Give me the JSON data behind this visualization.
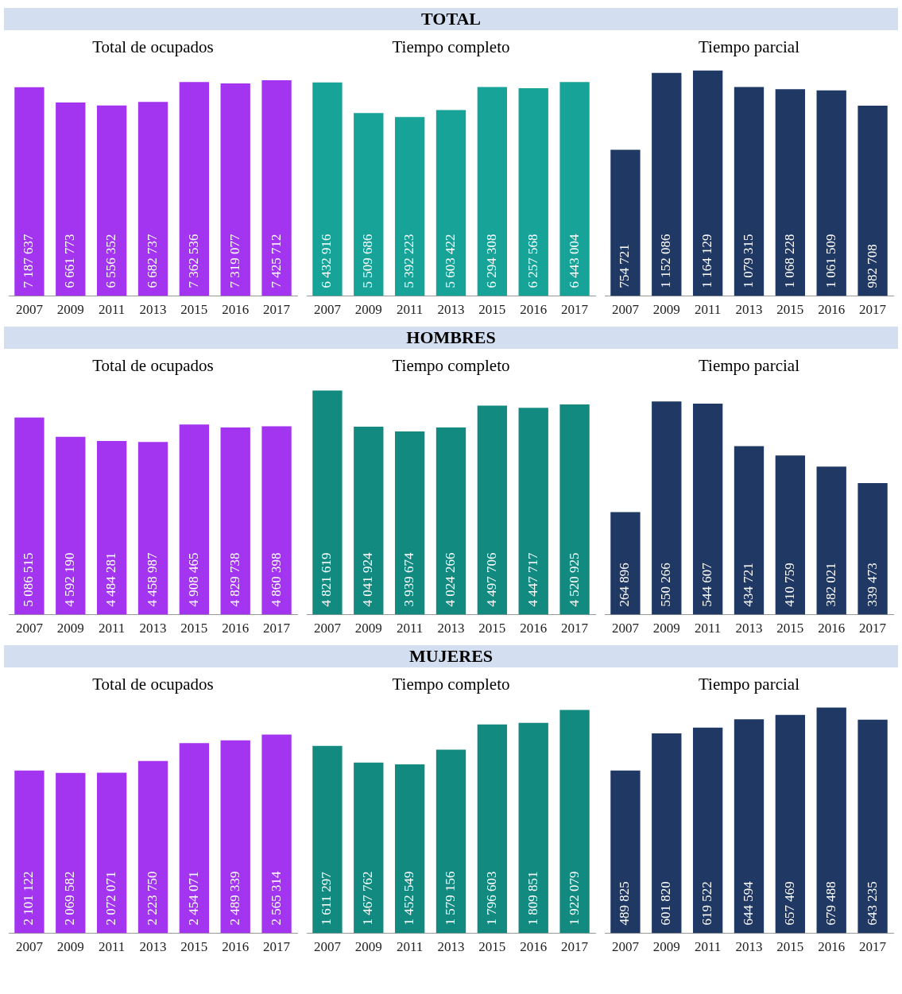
{
  "chart_data": [
    {
      "type": "bar",
      "subtitle": "Total de ocupados",
      "categories": [
        "2007",
        "2009",
        "2011",
        "2013",
        "2015",
        "2016",
        "2017"
      ],
      "values": [
        7187637,
        6661773,
        6556352,
        6682737,
        7362536,
        7319077,
        7425712
      ],
      "color": "#a335f0",
      "data_labels": true,
      "tick_labels": "x"
    },
    {
      "type": "bar",
      "title": "TOTAL",
      "subtitle": "Tiempo completo",
      "categories": [
        "2007",
        "2009",
        "2011",
        "2013",
        "2015",
        "2016",
        "2017"
      ],
      "values": [
        6432916,
        5509686,
        5392223,
        5603422,
        6294308,
        6257568,
        6443004
      ],
      "color": "#17a398",
      "data_labels": true,
      "tick_labels": "x"
    },
    {
      "type": "bar",
      "subtitle": "Tiempo parcial",
      "categories": [
        "2007",
        "2009",
        "2011",
        "2013",
        "2015",
        "2016",
        "2017"
      ],
      "values": [
        754721,
        1152086,
        1164129,
        1079315,
        1068228,
        1061509,
        982708
      ],
      "color": "#1f3864",
      "data_labels": true,
      "tick_labels": "x"
    },
    {
      "type": "bar",
      "subtitle": "Total de ocupados",
      "categories": [
        "2007",
        "2009",
        "2011",
        "2013",
        "2015",
        "2016",
        "2017"
      ],
      "values": [
        5086515,
        4592190,
        4484281,
        4458987,
        4908465,
        4829738,
        4860398
      ],
      "color": "#a335f0",
      "data_labels": true,
      "tick_labels": "x"
    },
    {
      "type": "bar",
      "title": "HOMBRES",
      "subtitle": "Tiempo completo",
      "categories": [
        "2007",
        "2009",
        "2011",
        "2013",
        "2015",
        "2016",
        "2017"
      ],
      "values": [
        4821619,
        4041924,
        3939674,
        4024266,
        4497706,
        4447717,
        4520925
      ],
      "color": "#138a80",
      "data_labels": true,
      "tick_labels": "x"
    },
    {
      "type": "bar",
      "subtitle": "Tiempo parcial",
      "categories": [
        "2007",
        "2009",
        "2011",
        "2013",
        "2015",
        "2016",
        "2017"
      ],
      "values": [
        264896,
        550266,
        544607,
        434721,
        410759,
        382021,
        339473
      ],
      "color": "#1f3864",
      "data_labels": true,
      "tick_labels": "x"
    },
    {
      "type": "bar",
      "subtitle": "Total de ocupados",
      "categories": [
        "2007",
        "2009",
        "2011",
        "2013",
        "2015",
        "2016",
        "2017"
      ],
      "values": [
        2101122,
        2069582,
        2072071,
        2223750,
        2454071,
        2489339,
        2565314
      ],
      "color": "#a335f0",
      "data_labels": true,
      "tick_labels": "x"
    },
    {
      "type": "bar",
      "title": "MUJERES",
      "subtitle": "Tiempo completo",
      "categories": [
        "2007",
        "2009",
        "2011",
        "2013",
        "2015",
        "2016",
        "2017"
      ],
      "values": [
        1611297,
        1467762,
        1452549,
        1579156,
        1796603,
        1809851,
        1922079
      ],
      "color": "#138a80",
      "data_labels": true,
      "tick_labels": "x"
    },
    {
      "type": "bar",
      "subtitle": "Tiempo parcial",
      "categories": [
        "2007",
        "2009",
        "2011",
        "2013",
        "2015",
        "2016",
        "2017"
      ],
      "values": [
        489825,
        601820,
        619522,
        644594,
        657469,
        679488,
        643235
      ],
      "color": "#1f3864",
      "data_labels": true,
      "tick_labels": "x"
    }
  ]
}
